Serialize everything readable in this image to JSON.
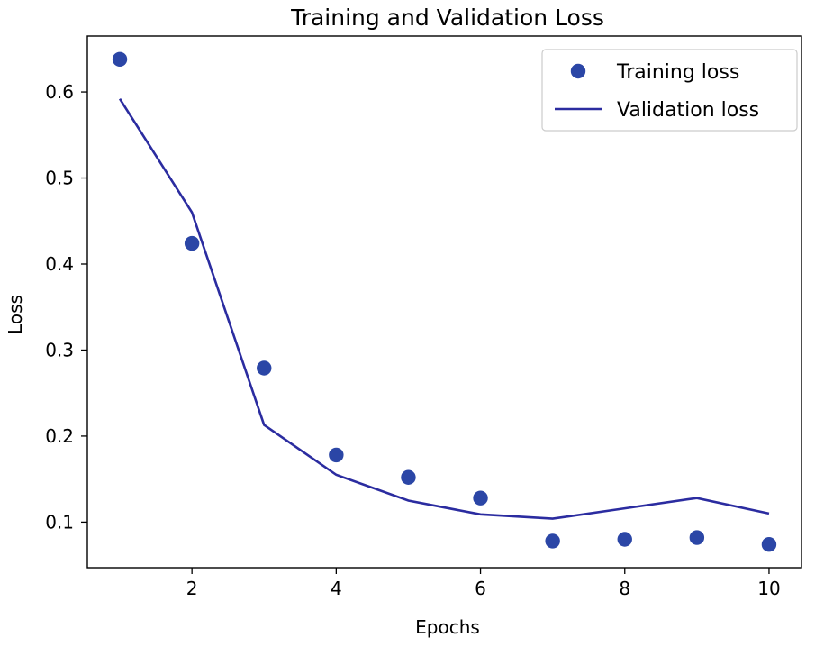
{
  "chart_data": {
    "type": "line",
    "title": "Training and Validation Loss",
    "xlabel": "Epochs",
    "ylabel": "Loss",
    "x": [
      1,
      2,
      3,
      4,
      5,
      6,
      7,
      8,
      9,
      10
    ],
    "xlim": [
      0.55,
      10.45
    ],
    "ylim": [
      0.047,
      0.665
    ],
    "xticks": [
      2,
      4,
      6,
      8,
      10
    ],
    "yticks": [
      0.1,
      0.2,
      0.3,
      0.4,
      0.5,
      0.6
    ],
    "xtick_labels": [
      "2",
      "4",
      "6",
      "8",
      "10"
    ],
    "ytick_labels": [
      "0.1",
      "0.2",
      "0.3",
      "0.4",
      "0.5",
      "0.6"
    ],
    "grid": false,
    "legend_position": "top-right",
    "series": [
      {
        "name": "Training loss",
        "style": "markers",
        "color": "#2b46a6",
        "values": [
          0.638,
          0.424,
          0.279,
          0.178,
          0.152,
          0.128,
          0.078,
          0.08,
          0.082,
          0.074
        ]
      },
      {
        "name": "Validation loss",
        "style": "line",
        "color": "#2b2ca0",
        "values": [
          0.592,
          0.46,
          0.213,
          0.155,
          0.125,
          0.109,
          0.104,
          0.116,
          0.128,
          0.11
        ]
      }
    ]
  }
}
